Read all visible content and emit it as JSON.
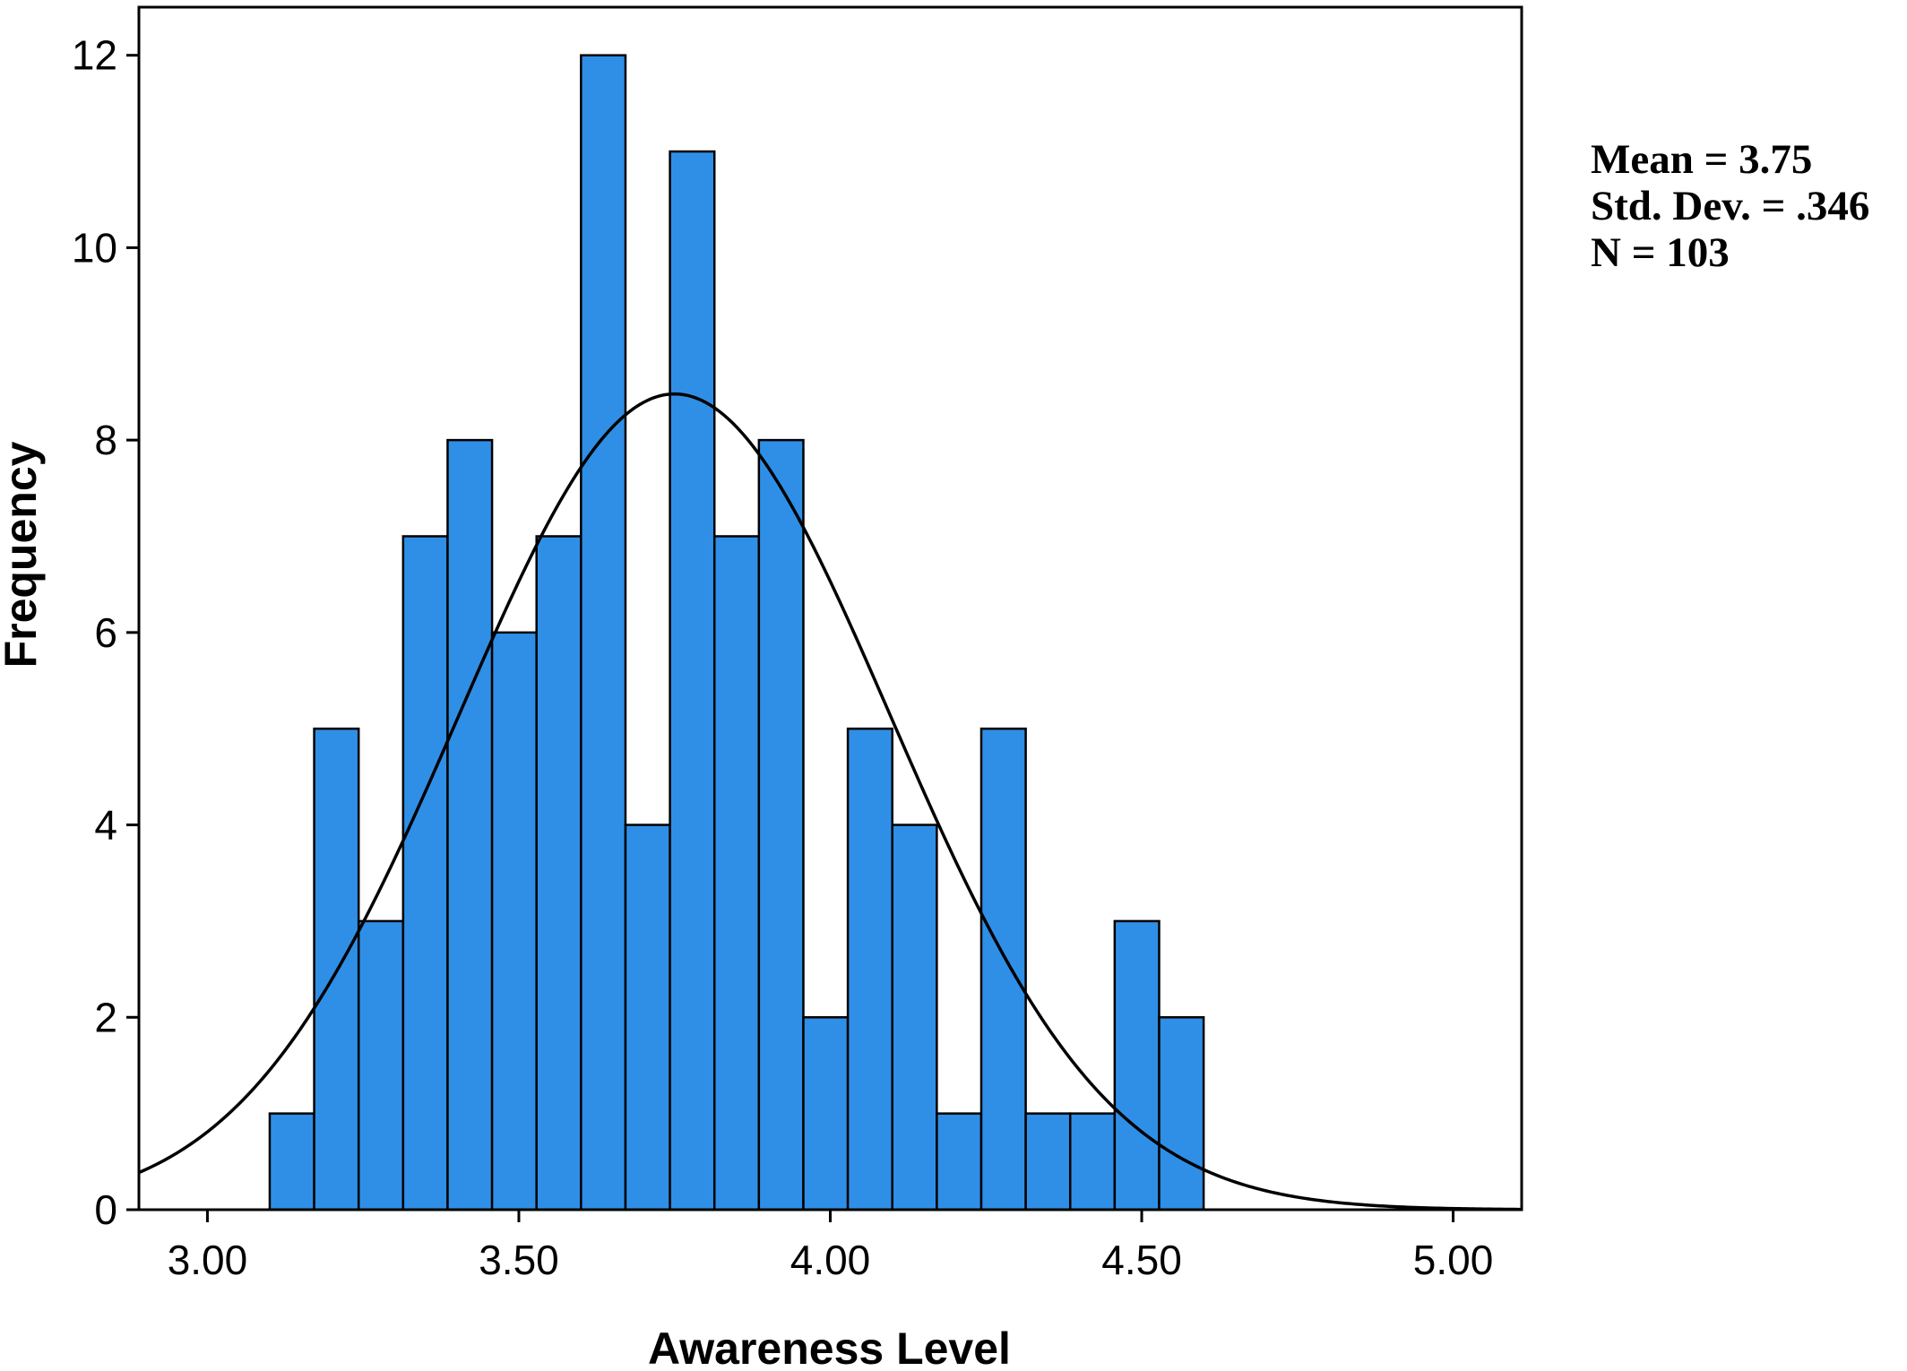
{
  "chart_data": {
    "type": "bar",
    "subtype": "histogram",
    "xlabel": "Awareness Level",
    "ylabel": "Frequency",
    "xlim": [
      2.89,
      5.11
    ],
    "ylim": [
      0,
      12.5
    ],
    "x_ticks": [
      3.0,
      3.5,
      4.0,
      4.5,
      5.0
    ],
    "x_tick_labels": [
      "3.00",
      "3.50",
      "4.00",
      "4.50",
      "5.00"
    ],
    "y_ticks": [
      0,
      2,
      4,
      6,
      8,
      10,
      12
    ],
    "y_tick_labels": [
      "0",
      "2",
      "4",
      "6",
      "8",
      "10",
      "12"
    ],
    "bin_start": 3.1,
    "bin_width": 0.0714,
    "values": [
      1,
      5,
      3,
      7,
      8,
      6,
      7,
      12,
      4,
      11,
      7,
      8,
      2,
      5,
      4,
      1,
      5,
      1,
      1,
      3,
      2
    ],
    "bar_color": "#2f8fe6",
    "grid": false,
    "normal_curve": {
      "mean": 3.75,
      "std": 0.346,
      "n": 103
    },
    "stats": {
      "mean_label": "Mean = 3.75",
      "std_label": "Std. Dev. = .346",
      "n_label": "N = 103"
    }
  }
}
